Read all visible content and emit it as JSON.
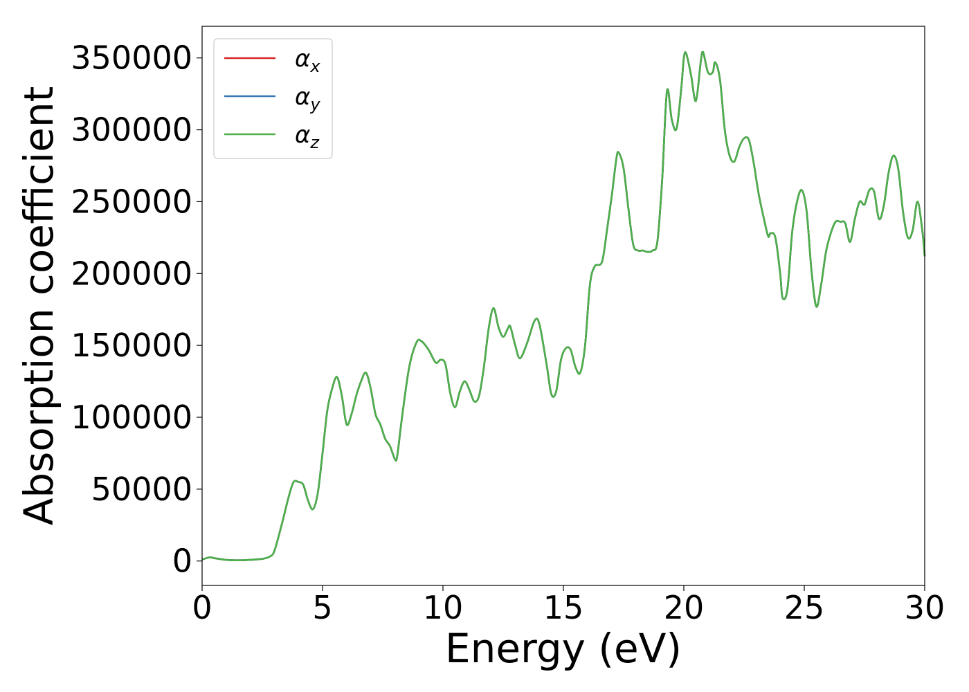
{
  "chart_data": {
    "type": "line",
    "title": "",
    "xlabel": "Energy (eV)",
    "ylabel": "Absorption coefficient",
    "xlim": [
      0,
      30
    ],
    "ylim": [
      -17000,
      372000
    ],
    "xticks": [
      0,
      5,
      10,
      15,
      20,
      25,
      30
    ],
    "yticks": [
      0,
      50000,
      100000,
      150000,
      200000,
      250000,
      300000,
      350000
    ],
    "grid": false,
    "legend_position": "top-left",
    "series": [
      {
        "name": "α_x",
        "legend_symbol": "α",
        "legend_subscript": "x",
        "color": "#d62728",
        "x": [
          0,
          0.3,
          0.5,
          1.0,
          1.5,
          2.0,
          2.5,
          2.8,
          3.0,
          3.3,
          3.6,
          3.8,
          4.0,
          4.2,
          4.4,
          4.6,
          4.8,
          5.0,
          5.2,
          5.4,
          5.6,
          5.8,
          6.0,
          6.2,
          6.4,
          6.6,
          6.8,
          7.0,
          7.2,
          7.4,
          7.6,
          7.8,
          8.0,
          8.1,
          8.3,
          8.6,
          8.9,
          9.1,
          9.4,
          9.7,
          9.9,
          10.1,
          10.3,
          10.5,
          10.7,
          10.9,
          11.1,
          11.3,
          11.5,
          11.7,
          11.9,
          12.1,
          12.3,
          12.5,
          12.7,
          12.8,
          13.0,
          13.2,
          13.5,
          13.8,
          14.0,
          14.3,
          14.5,
          14.7,
          14.9,
          15.1,
          15.3,
          15.5,
          15.7,
          15.9,
          16.1,
          16.3,
          16.6,
          16.8,
          17.0,
          17.2,
          17.3,
          17.5,
          17.7,
          17.9,
          18.1,
          18.3,
          18.5,
          18.7,
          18.9,
          19.1,
          19.3,
          19.5,
          19.7,
          19.9,
          20.0,
          20.1,
          20.3,
          20.5,
          20.7,
          20.8,
          21.0,
          21.2,
          21.3,
          21.5,
          21.7,
          21.9,
          22.1,
          22.3,
          22.5,
          22.7,
          22.9,
          23.1,
          23.3,
          23.5,
          23.6,
          23.8,
          24.0,
          24.1,
          24.3,
          24.5,
          24.7,
          24.9,
          25.1,
          25.3,
          25.5,
          25.7,
          25.9,
          26.1,
          26.3,
          26.5,
          26.7,
          26.9,
          27.1,
          27.3,
          27.5,
          27.7,
          27.9,
          28.1,
          28.3,
          28.5,
          28.7,
          28.9,
          29.1,
          29.3,
          29.5,
          29.7,
          29.9,
          30.0
        ],
        "y": [
          1000,
          2500,
          2000,
          800,
          500,
          800,
          1500,
          3000,
          7000,
          25000,
          45000,
          55000,
          55000,
          53000,
          42000,
          36000,
          47000,
          75000,
          105000,
          120000,
          128000,
          115000,
          95000,
          102000,
          115000,
          125000,
          131000,
          120000,
          102000,
          95000,
          85000,
          80000,
          71000,
          73000,
          100000,
          135000,
          152000,
          153000,
          147000,
          138000,
          140000,
          137000,
          117000,
          107000,
          118000,
          125000,
          119000,
          111000,
          115000,
          135000,
          162000,
          176000,
          163000,
          156000,
          162000,
          163000,
          150000,
          141000,
          152000,
          167000,
          165000,
          137000,
          116000,
          118000,
          140000,
          148000,
          147000,
          135000,
          131000,
          150000,
          192000,
          205000,
          208000,
          229000,
          253000,
          280000,
          284000,
          273000,
          245000,
          220000,
          216000,
          216000,
          215000,
          216000,
          222000,
          265000,
          327000,
          307000,
          301000,
          330000,
          350000,
          353000,
          338000,
          320000,
          347000,
          354000,
          340000,
          340000,
          347000,
          335000,
          300000,
          282000,
          278000,
          288000,
          294000,
          293000,
          277000,
          256000,
          240000,
          226000,
          228000,
          225000,
          200000,
          183000,
          189000,
          229000,
          250000,
          258000,
          243000,
          202000,
          177000,
          192000,
          215000,
          228000,
          236000,
          236000,
          235000,
          222000,
          238000,
          250000,
          248000,
          258000,
          257000,
          238000,
          247000,
          270000,
          282000,
          273000,
          243000,
          225000,
          230000,
          250000,
          230000,
          212000
        ]
      },
      {
        "name": "α_y",
        "legend_symbol": "α",
        "legend_subscript": "y",
        "color": "#3a78b5",
        "x": [
          0,
          0.3,
          0.5,
          1.0,
          1.5,
          2.0,
          2.5,
          2.8,
          3.0,
          3.3,
          3.6,
          3.8,
          4.0,
          4.2,
          4.4,
          4.6,
          4.8,
          5.0,
          5.2,
          5.4,
          5.6,
          5.8,
          6.0,
          6.2,
          6.4,
          6.6,
          6.8,
          7.0,
          7.2,
          7.4,
          7.6,
          7.8,
          8.0,
          8.1,
          8.3,
          8.6,
          8.9,
          9.1,
          9.4,
          9.7,
          9.9,
          10.1,
          10.3,
          10.5,
          10.7,
          10.9,
          11.1,
          11.3,
          11.5,
          11.7,
          11.9,
          12.1,
          12.3,
          12.5,
          12.7,
          12.8,
          13.0,
          13.2,
          13.5,
          13.8,
          14.0,
          14.3,
          14.5,
          14.7,
          14.9,
          15.1,
          15.3,
          15.5,
          15.7,
          15.9,
          16.1,
          16.3,
          16.6,
          16.8,
          17.0,
          17.2,
          17.3,
          17.5,
          17.7,
          17.9,
          18.1,
          18.3,
          18.5,
          18.7,
          18.9,
          19.1,
          19.3,
          19.5,
          19.7,
          19.9,
          20.0,
          20.1,
          20.3,
          20.5,
          20.7,
          20.8,
          21.0,
          21.2,
          21.3,
          21.5,
          21.7,
          21.9,
          22.1,
          22.3,
          22.5,
          22.7,
          22.9,
          23.1,
          23.3,
          23.5,
          23.6,
          23.8,
          24.0,
          24.1,
          24.3,
          24.5,
          24.7,
          24.9,
          25.1,
          25.3,
          25.5,
          25.7,
          25.9,
          26.1,
          26.3,
          26.5,
          26.7,
          26.9,
          27.1,
          27.3,
          27.5,
          27.7,
          27.9,
          28.1,
          28.3,
          28.5,
          28.7,
          28.9,
          29.1,
          29.3,
          29.5,
          29.7,
          29.9,
          30.0
        ],
        "y": [
          1000,
          2500,
          2000,
          800,
          500,
          800,
          1500,
          3000,
          7000,
          25000,
          45000,
          55000,
          55000,
          53000,
          42000,
          36000,
          47000,
          75000,
          105000,
          120000,
          128000,
          115000,
          95000,
          102000,
          115000,
          125000,
          131000,
          120000,
          102000,
          95000,
          85000,
          80000,
          71000,
          73000,
          100000,
          135000,
          152000,
          153000,
          147000,
          138000,
          140000,
          137000,
          117000,
          107000,
          118000,
          125000,
          119000,
          111000,
          115000,
          135000,
          162000,
          176000,
          163000,
          156000,
          162000,
          163000,
          150000,
          141000,
          152000,
          167000,
          165000,
          137000,
          116000,
          118000,
          140000,
          148000,
          147000,
          135000,
          131000,
          150000,
          192000,
          205000,
          208000,
          229000,
          253000,
          280000,
          284000,
          273000,
          245000,
          220000,
          216000,
          216000,
          215000,
          216000,
          222000,
          265000,
          327000,
          307000,
          301000,
          330000,
          350000,
          353000,
          338000,
          320000,
          347000,
          354000,
          340000,
          340000,
          347000,
          335000,
          300000,
          282000,
          278000,
          288000,
          294000,
          293000,
          277000,
          256000,
          240000,
          226000,
          228000,
          225000,
          200000,
          183000,
          189000,
          229000,
          250000,
          258000,
          243000,
          202000,
          177000,
          192000,
          215000,
          228000,
          236000,
          236000,
          235000,
          222000,
          238000,
          250000,
          248000,
          258000,
          257000,
          238000,
          247000,
          270000,
          282000,
          273000,
          243000,
          225000,
          230000,
          250000,
          230000,
          212000
        ]
      },
      {
        "name": "α_z",
        "legend_symbol": "α",
        "legend_subscript": "z",
        "color": "#4daf4a",
        "x": [
          0,
          0.3,
          0.5,
          1.0,
          1.5,
          2.0,
          2.5,
          2.8,
          3.0,
          3.3,
          3.6,
          3.8,
          4.0,
          4.2,
          4.4,
          4.6,
          4.8,
          5.0,
          5.2,
          5.4,
          5.6,
          5.8,
          6.0,
          6.2,
          6.4,
          6.6,
          6.8,
          7.0,
          7.2,
          7.4,
          7.6,
          7.8,
          8.0,
          8.1,
          8.3,
          8.6,
          8.9,
          9.1,
          9.4,
          9.7,
          9.9,
          10.1,
          10.3,
          10.5,
          10.7,
          10.9,
          11.1,
          11.3,
          11.5,
          11.7,
          11.9,
          12.1,
          12.3,
          12.5,
          12.7,
          12.8,
          13.0,
          13.2,
          13.5,
          13.8,
          14.0,
          14.3,
          14.5,
          14.7,
          14.9,
          15.1,
          15.3,
          15.5,
          15.7,
          15.9,
          16.1,
          16.3,
          16.6,
          16.8,
          17.0,
          17.2,
          17.3,
          17.5,
          17.7,
          17.9,
          18.1,
          18.3,
          18.5,
          18.7,
          18.9,
          19.1,
          19.3,
          19.5,
          19.7,
          19.9,
          20.0,
          20.1,
          20.3,
          20.5,
          20.7,
          20.8,
          21.0,
          21.2,
          21.3,
          21.5,
          21.7,
          21.9,
          22.1,
          22.3,
          22.5,
          22.7,
          22.9,
          23.1,
          23.3,
          23.5,
          23.6,
          23.8,
          24.0,
          24.1,
          24.3,
          24.5,
          24.7,
          24.9,
          25.1,
          25.3,
          25.5,
          25.7,
          25.9,
          26.1,
          26.3,
          26.5,
          26.7,
          26.9,
          27.1,
          27.3,
          27.5,
          27.7,
          27.9,
          28.1,
          28.3,
          28.5,
          28.7,
          28.9,
          29.1,
          29.3,
          29.5,
          29.7,
          29.9,
          30.0
        ],
        "y": [
          1000,
          2500,
          2000,
          800,
          500,
          800,
          1500,
          3000,
          7000,
          25000,
          45000,
          55000,
          55000,
          53000,
          42000,
          36000,
          47000,
          75000,
          105000,
          120000,
          128000,
          115000,
          95000,
          102000,
          115000,
          125000,
          131000,
          120000,
          102000,
          95000,
          85000,
          80000,
          71000,
          73000,
          100000,
          135000,
          152000,
          153000,
          147000,
          138000,
          140000,
          137000,
          117000,
          107000,
          118000,
          125000,
          119000,
          111000,
          115000,
          135000,
          162000,
          176000,
          163000,
          156000,
          162000,
          163000,
          150000,
          141000,
          152000,
          167000,
          165000,
          137000,
          116000,
          118000,
          140000,
          148000,
          147000,
          135000,
          131000,
          150000,
          192000,
          205000,
          208000,
          229000,
          253000,
          280000,
          284000,
          273000,
          245000,
          220000,
          216000,
          216000,
          215000,
          216000,
          222000,
          265000,
          327000,
          307000,
          301000,
          330000,
          350000,
          353000,
          338000,
          320000,
          347000,
          354000,
          340000,
          340000,
          347000,
          335000,
          300000,
          282000,
          278000,
          288000,
          294000,
          293000,
          277000,
          256000,
          240000,
          226000,
          228000,
          225000,
          200000,
          183000,
          189000,
          229000,
          250000,
          258000,
          243000,
          202000,
          177000,
          192000,
          215000,
          228000,
          236000,
          236000,
          235000,
          222000,
          238000,
          250000,
          248000,
          258000,
          257000,
          238000,
          247000,
          270000,
          282000,
          273000,
          243000,
          225000,
          230000,
          250000,
          230000,
          212000
        ]
      }
    ]
  }
}
